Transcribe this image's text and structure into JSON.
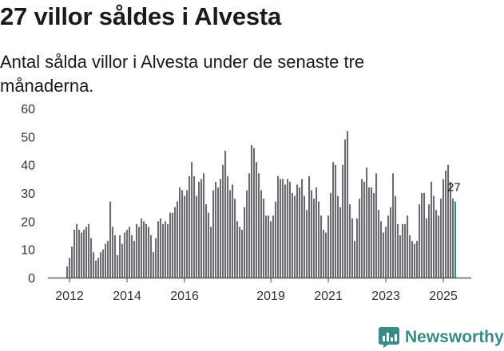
{
  "title": "27 villor såldes i Alvesta",
  "subtitle": "Antal sålda villor i Alvesta under de senaste tre månaderna.",
  "brand": {
    "name": "Newsworthy",
    "icon": "bar-chart-icon",
    "color": "#3a8a85"
  },
  "colors": {
    "bar": "#6c6b70",
    "highlight": "#3a8a85",
    "axis": "#444444",
    "grid": "#d6d6d6"
  },
  "chart_data": {
    "type": "bar",
    "title": "27 villor såldes i Alvesta",
    "xlabel": "",
    "ylabel": "",
    "ylim": [
      0,
      60
    ],
    "yticks": [
      0,
      10,
      20,
      30,
      40,
      50,
      60
    ],
    "xticks": [
      "2012",
      "2014",
      "2016",
      "2019",
      "2021",
      "2023",
      "2025"
    ],
    "grid": false,
    "x_start": "2011-12",
    "x_end": "2025-10",
    "highlight_label": "27",
    "values": [
      4,
      7,
      11,
      17,
      19,
      17,
      16,
      17,
      18,
      19,
      14,
      9,
      6,
      7,
      9,
      10,
      12,
      13,
      27,
      18,
      15,
      8,
      15,
      12,
      16,
      17,
      18,
      15,
      13,
      19,
      18,
      21,
      20,
      19,
      18,
      15,
      9,
      14,
      20,
      21,
      19,
      20,
      19,
      23,
      23,
      25,
      27,
      32,
      31,
      29,
      31,
      36,
      41,
      36,
      29,
      34,
      35,
      37,
      26,
      23,
      18,
      31,
      34,
      32,
      35,
      40,
      45,
      36,
      31,
      33,
      28,
      20,
      18,
      17,
      25,
      31,
      37,
      47,
      46,
      41,
      37,
      31,
      28,
      22,
      22,
      20,
      22,
      27,
      36,
      35,
      35,
      33,
      35,
      34,
      30,
      29,
      33,
      32,
      35,
      29,
      24,
      36,
      31,
      28,
      32,
      27,
      22,
      17,
      16,
      22,
      30,
      41,
      40,
      29,
      25,
      40,
      49,
      52,
      26,
      21,
      13,
      21,
      28,
      35,
      34,
      39,
      32,
      32,
      30,
      37,
      24,
      20,
      16,
      18,
      22,
      25,
      37,
      29,
      19,
      15,
      19,
      19,
      22,
      15,
      13,
      12,
      13,
      26,
      30,
      30,
      21,
      26,
      34,
      29,
      24,
      22,
      28,
      35,
      38,
      40,
      34,
      28,
      27
    ]
  }
}
